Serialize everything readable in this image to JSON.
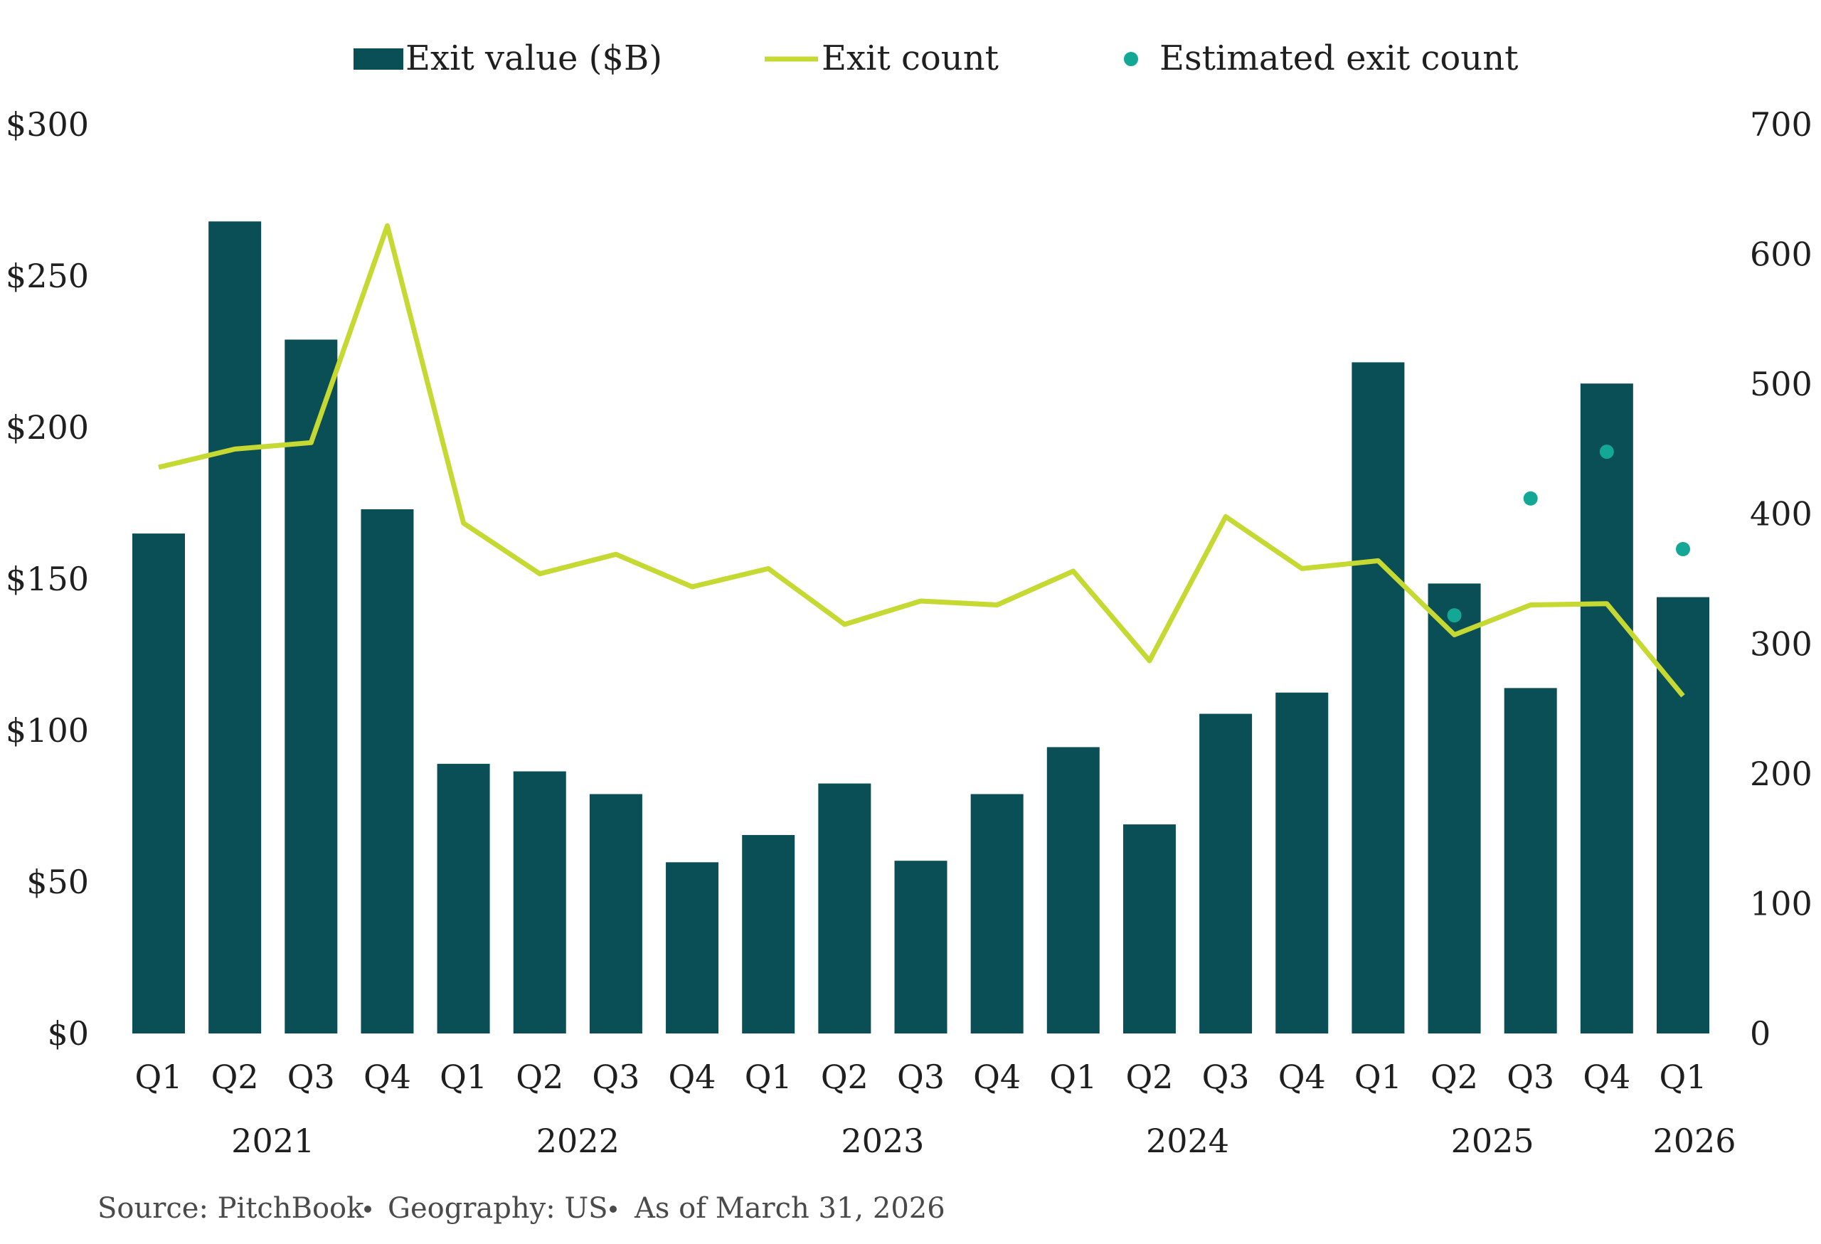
{
  "colors": {
    "bar": "#0a4f55",
    "line": "#c5d932",
    "dots": "#12a895"
  },
  "legend": {
    "bar_label": "Exit value ($B)",
    "line_label": "Exit count",
    "dots_label": "Estimated exit count"
  },
  "source": {
    "source_text": "Source: PitchBook",
    "geo_text": "Geography: US",
    "asof_text": "As of March 31, 2026"
  },
  "chart_data": {
    "type": "bar",
    "categories": [
      "Q1",
      "Q2",
      "Q3",
      "Q4",
      "Q1",
      "Q2",
      "Q3",
      "Q4",
      "Q1",
      "Q2",
      "Q3",
      "Q4",
      "Q1",
      "Q2",
      "Q3",
      "Q4",
      "Q1",
      "Q2",
      "Q3",
      "Q4",
      "Q1"
    ],
    "years": [
      {
        "label": "2021",
        "from": 0,
        "to": 3
      },
      {
        "label": "2022",
        "from": 4,
        "to": 7
      },
      {
        "label": "2023",
        "from": 8,
        "to": 11
      },
      {
        "label": "2024",
        "from": 12,
        "to": 15
      },
      {
        "label": "2025",
        "from": 16,
        "to": 19
      },
      {
        "label": "2026",
        "from": 20,
        "to": 20
      }
    ],
    "y_left": {
      "min": 0,
      "max": 300,
      "ticks": [
        "$0",
        "$50",
        "$100",
        "$150",
        "$200",
        "$250",
        "$300"
      ]
    },
    "y_right": {
      "min": 0,
      "max": 700,
      "ticks": [
        "0",
        "100",
        "200",
        "300",
        "400",
        "500",
        "600",
        "700"
      ]
    },
    "series": [
      {
        "name": "Exit value ($B)",
        "type": "bar",
        "axis": "left",
        "values": [
          165,
          268,
          229,
          173,
          89,
          86.5,
          79,
          56.5,
          65.5,
          82.5,
          57,
          79,
          94.5,
          69,
          105.5,
          112.5,
          221.5,
          148.5,
          114,
          214.5,
          144
        ]
      },
      {
        "name": "Exit count",
        "type": "line",
        "axis": "right",
        "values": [
          436,
          450,
          455,
          622,
          393,
          354,
          369,
          344,
          358,
          315,
          333,
          330,
          356,
          287,
          398,
          358,
          364,
          307,
          330,
          331,
          260
        ]
      },
      {
        "name": "Estimated exit count",
        "type": "scatter",
        "axis": "right",
        "points": [
          {
            "index": 17,
            "value": 322
          },
          {
            "index": 18,
            "value": 412
          },
          {
            "index": 19,
            "value": 448
          },
          {
            "index": 20,
            "value": 373
          }
        ]
      }
    ]
  }
}
